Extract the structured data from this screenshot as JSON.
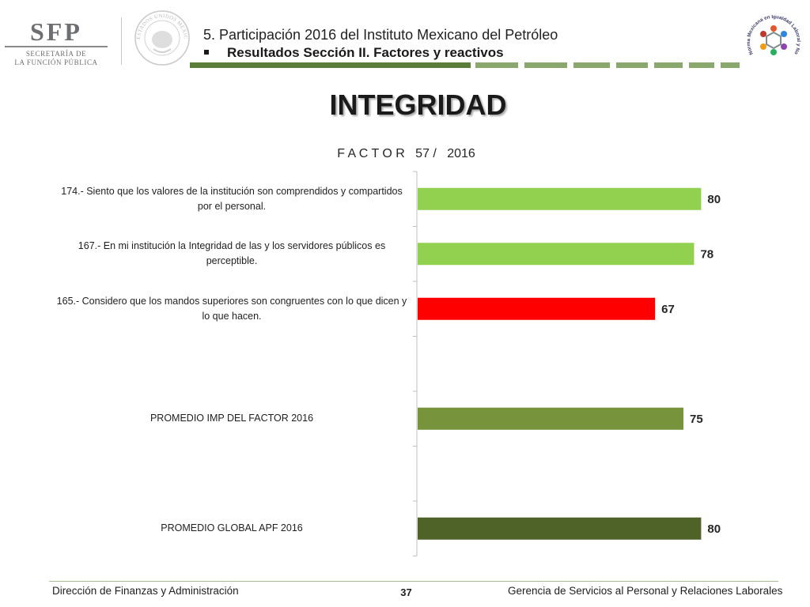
{
  "header": {
    "logo_text": "SFP",
    "logo_line1": "SECRETARÍA DE",
    "logo_line2": "LA FUNCIÓN PÚBLICA",
    "seal_text": "ESTADOS UNIDOS MEXICANOS",
    "title": "5. Participación 2016 del Instituto Mexicano del Petróleo",
    "subtitle": "Resultados Sección II. Factores y reactivos",
    "norma_text": "Norma Mexicana en Igualdad Laboral y No Discriminación",
    "colors": {
      "bar_dark": "#5a7d3a",
      "bar_light": "#8aa86d"
    }
  },
  "main_title": "INTEGRIDAD",
  "chart_data": {
    "type": "bar",
    "orientation": "horizontal",
    "title": "F A C T O R   57 /   2016",
    "categories": [
      "174.- Siento que los valores de la institución son comprendidos y compartidos por el personal.",
      "167.- En mi institución la Integridad de las y los servidores públicos es perceptible.",
      "165.- Considero que los mandos superiores son congruentes con lo que dicen y lo que hacen.",
      "",
      "PROMEDIO IMP DEL FACTOR   2016",
      "",
      "PROMEDIO GLOBAL APF   2016"
    ],
    "values": [
      80,
      78,
      67,
      null,
      75,
      null,
      80
    ],
    "bar_colors": [
      "#92d050",
      "#92d050",
      "#ff0000",
      null,
      "#77933c",
      null,
      "#4f6228"
    ],
    "xlim": [
      0,
      100
    ],
    "data_labels": true,
    "grid": false
  },
  "footer": {
    "left": "Dirección de Finanzas y Administración",
    "page": "37",
    "right": "Gerencia de Servicios al Personal y Relaciones Laborales"
  }
}
